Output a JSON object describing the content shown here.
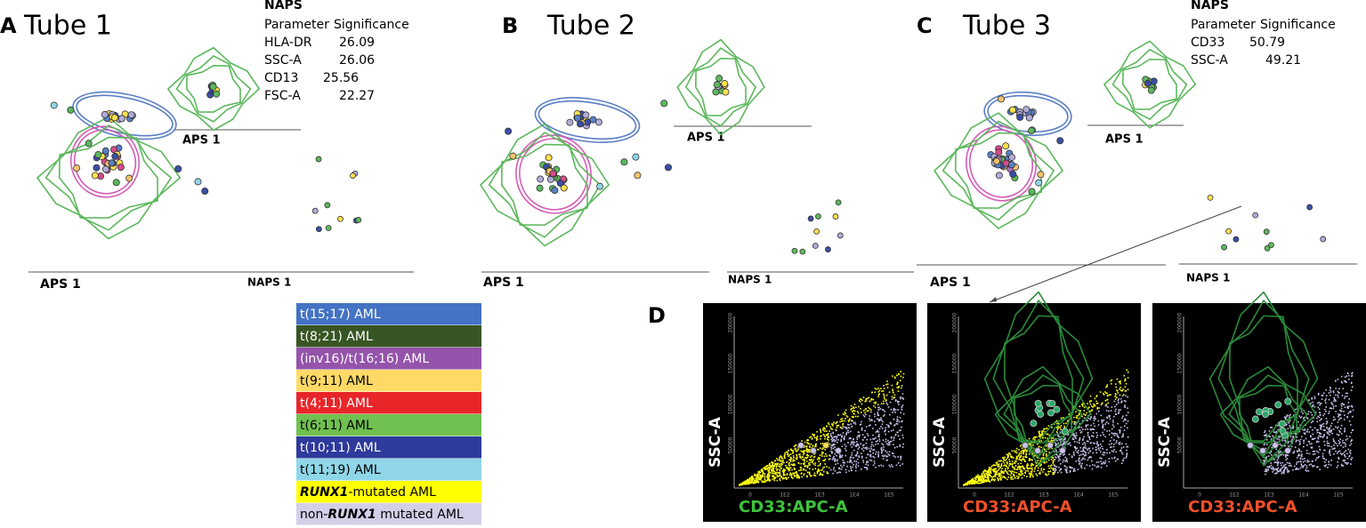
{
  "panels": [
    {
      "letter": "A",
      "title": "Tube 1",
      "naps": {
        "heading": "NAPS",
        "columns": [
          "Parameter",
          "Significance"
        ],
        "rows": [
          [
            "HLA-DR",
            "26.09"
          ],
          [
            "SSC-A",
            "26.06"
          ],
          [
            "CD13",
            "25.56"
          ],
          [
            "FSC-A",
            "22.27"
          ]
        ]
      },
      "axis_labels": {
        "aps_inner": "APS 1",
        "aps_outer": "APS 1",
        "naps_outer": "NAPS 1"
      }
    },
    {
      "letter": "B",
      "title": "Tube 2",
      "axis_labels": {
        "aps_inner": "APS 1",
        "aps_outer": "APS 1",
        "naps_outer": "NAPS 1"
      }
    },
    {
      "letter": "C",
      "title": "Tube 3",
      "naps": {
        "heading": "NAPS",
        "columns": [
          "Parameter",
          "Significance"
        ],
        "rows": [
          [
            "CD33",
            "50.79"
          ],
          [
            "SSC-A",
            "49.21"
          ]
        ]
      },
      "axis_labels": {
        "aps_inner": "APS 1",
        "aps_outer": "APS 1",
        "naps_outer": "NAPS 1"
      }
    }
  ],
  "legend": {
    "items": [
      {
        "label": "t(15;17) AML",
        "color": "#4472c4",
        "text_color": "#ffffff"
      },
      {
        "label": "t(8;21) AML",
        "color": "#375623",
        "text_color": "#ffffff"
      },
      {
        "label": "(inv16)/t(16;16) AML",
        "color": "#9554ab",
        "text_color": "#ffffff"
      },
      {
        "label": "t(9;11) AML",
        "color": "#ffd966",
        "text_color": "#000000"
      },
      {
        "label": "t(4;11) AML",
        "color": "#e8262a",
        "text_color": "#ffffff"
      },
      {
        "label": "t(6;11) AML",
        "color": "#70c050",
        "text_color": "#000000"
      },
      {
        "label": "t(10;11) AML",
        "color": "#2e3a9c",
        "text_color": "#ffffff"
      },
      {
        "label": "t(11;19) AML",
        "color": "#8fd6e8",
        "text_color": "#000000"
      },
      {
        "italic": "RUNX1",
        "label": "-mutated AML",
        "color": "#ffff00",
        "text_color": "#000000"
      },
      {
        "prefix": "non-",
        "italic": "RUNX1",
        "label": " mutated AML",
        "color": "#d3cfe8",
        "text_color": "#000000"
      }
    ]
  },
  "panel_d": {
    "letter": "D",
    "plots": [
      {
        "y_label": "SSC-A",
        "x_label": "CD33:APC-A",
        "x_label_color": "#3cc43c",
        "x_ticks": [
          "0",
          "1E2",
          "1E3",
          "1E4",
          "1E5"
        ],
        "y_ticks": [
          "50000",
          "100000",
          "150000",
          "200000"
        ]
      },
      {
        "y_label": "SSC-A",
        "x_label": "CD33:APC-A",
        "x_label_color": "#f0502a",
        "x_ticks": [
          "0",
          "1E2",
          "1E3",
          "1E4",
          "1E5"
        ],
        "y_ticks": [
          "50000",
          "100000",
          "150000",
          "200000"
        ]
      },
      {
        "y_label": "SSC-A",
        "x_label": "CD33:APC-A",
        "x_label_color": "#f0502a",
        "x_ticks": [
          "0",
          "1E2",
          "1E3",
          "1E4",
          "1E5"
        ],
        "y_ticks": [
          "50000",
          "100000",
          "150000",
          "200000"
        ]
      }
    ]
  }
}
